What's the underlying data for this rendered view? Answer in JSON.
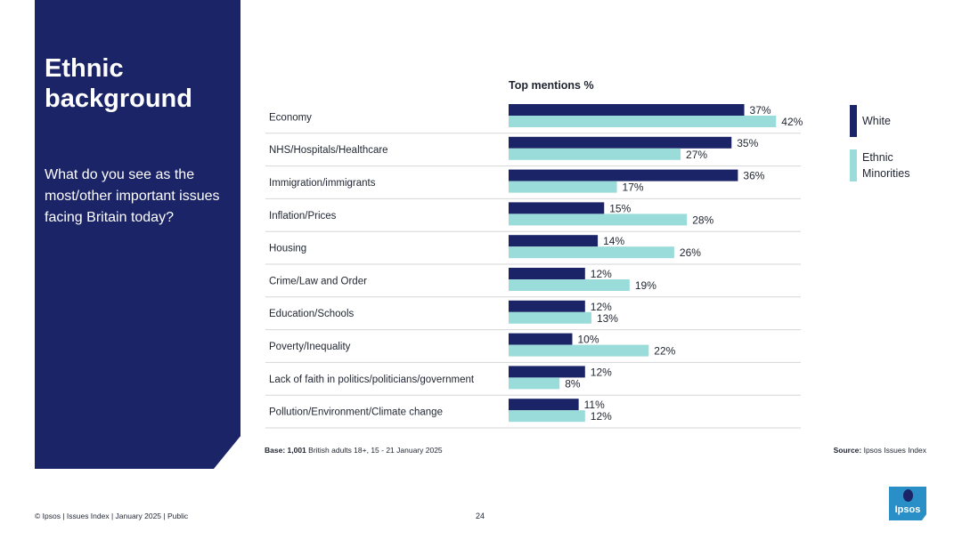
{
  "side": {
    "title_line1": "Ethnic",
    "title_line2": "background",
    "question": "What do you see as the most/other important issues facing Britain today?"
  },
  "colors": {
    "navy": "#1b2466",
    "teal": "#9adcda",
    "logo_blue": "#2a8fc7"
  },
  "chart_data": {
    "type": "bar",
    "orientation": "horizontal",
    "title": "Top mentions %",
    "categories": [
      "Economy",
      "NHS/Hospitals/Healthcare",
      "Immigration/immigrants",
      "Inflation/Prices",
      "Housing",
      "Crime/Law and Order",
      "Education/Schools",
      "Poverty/Inequality",
      "Lack of faith in politics/politicians/government",
      "Pollution/Environment/Climate change"
    ],
    "series": [
      {
        "name": "White",
        "color": "#1b2466",
        "values": [
          37,
          35,
          36,
          15,
          14,
          12,
          12,
          10,
          12,
          11
        ]
      },
      {
        "name": "Ethnic Minorities",
        "color": "#9adcda",
        "values": [
          42,
          27,
          17,
          28,
          26,
          19,
          13,
          22,
          8,
          12
        ]
      }
    ],
    "value_suffix": "%",
    "xlim": [
      0,
      50
    ],
    "legend_position": "right"
  },
  "legend": {
    "white": "White",
    "ethnic_line1": "Ethnic",
    "ethnic_line2": "Minorities"
  },
  "notes": {
    "base_bold": "Base: 1,001",
    "base_rest": " British adults 18+, 15 - 21 January 2025",
    "source_bold": "Source:",
    "source_rest": " Ipsos Issues Index"
  },
  "footer": {
    "text": "© Ipsos | Issues Index | January 2025 | Public",
    "page": "24"
  },
  "logo": {
    "text": "Ipsos"
  }
}
